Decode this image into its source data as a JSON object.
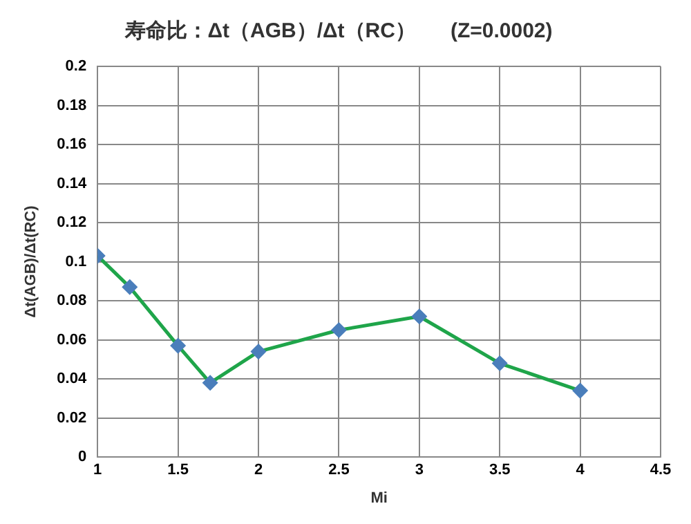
{
  "chart_data": {
    "type": "line",
    "title": "寿命比：Δt（AGB）/Δt（RC）      (Z=0.0002)",
    "xlabel": "Mi",
    "ylabel": "Δt(AGB)/Δt(RC)",
    "x": [
      1,
      1.2,
      1.5,
      1.7,
      2,
      2.5,
      3,
      3.5,
      4
    ],
    "series": [
      {
        "color": "#1fa54a",
        "values": [
          0.103,
          0.087,
          0.057,
          0.038,
          0.054,
          0.065,
          0.072,
          0.048,
          0.034
        ]
      }
    ],
    "xlim": [
      1,
      4.5
    ],
    "xticks": [
      1,
      1.5,
      2,
      2.5,
      3,
      3.5,
      4,
      4.5
    ],
    "ylim": [
      0,
      0.2
    ],
    "yticks": [
      0,
      0.02,
      0.04,
      0.06,
      0.08,
      0.1,
      0.12,
      0.14,
      0.16,
      0.18,
      0.2
    ],
    "grid": true,
    "legend": false,
    "marker": "diamond",
    "line_style": "solid"
  }
}
